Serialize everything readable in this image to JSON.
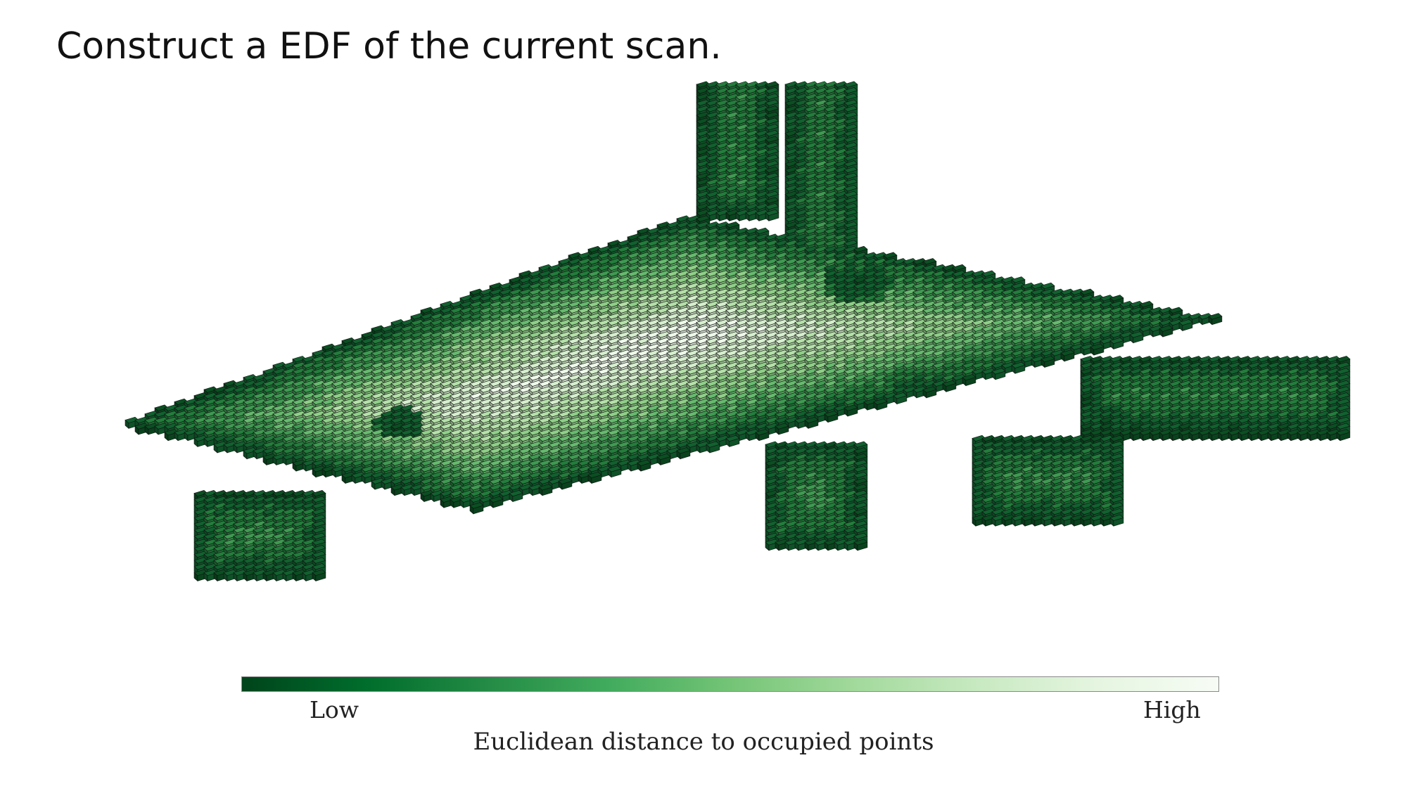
{
  "title": "Construct a EDF of the current scan.",
  "colorbar": {
    "low_label": "Low",
    "high_label": "High",
    "caption": "Euclidean distance to occupied points",
    "colors": [
      "#00441b",
      "#006d2c",
      "#238b45",
      "#41ab5d",
      "#74c476",
      "#a1d99b",
      "#c7e9c0",
      "#e5f5e0",
      "#f7fcf5"
    ]
  },
  "voxel_map": {
    "face_colors": [
      "#0a4f22",
      "#11612f",
      "#237d3c",
      "#3f9a52",
      "#66ba6e",
      "#8fcf88",
      "#b4e1a9",
      "#d6efce",
      "#eef9ea"
    ],
    "edge_color": "#111111"
  }
}
